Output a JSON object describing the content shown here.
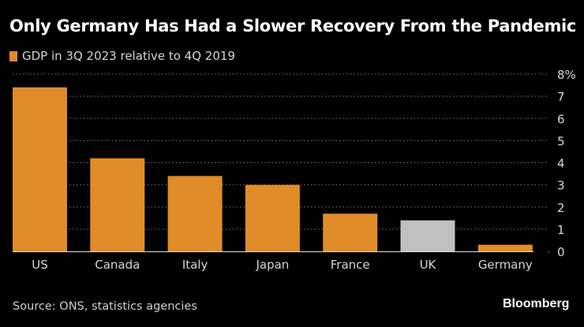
{
  "chart_data": {
    "type": "bar",
    "title": "Only Germany Has Had a Slower Recovery From the Pandemic",
    "legend": [
      {
        "name": "GDP in 3Q 2023 relative to 4Q 2019",
        "color": "#e08c28"
      }
    ],
    "legend_position": "top-left",
    "categories": [
      "US",
      "Canada",
      "Italy",
      "Japan",
      "France",
      "UK",
      "Germany"
    ],
    "values": [
      7.4,
      4.2,
      3.4,
      3.0,
      1.7,
      1.4,
      0.3
    ],
    "bar_colors": [
      "#e08c28",
      "#e08c28",
      "#e08c28",
      "#e08c28",
      "#e08c28",
      "#c0c0c0",
      "#e08c28"
    ],
    "xlabel": "",
    "ylabel": "",
    "ylim": [
      0,
      8
    ],
    "yticks": [
      0,
      1,
      2,
      3,
      4,
      5,
      6,
      7,
      8
    ],
    "ytick_labels": [
      "0",
      "1",
      "2",
      "3",
      "4",
      "5",
      "6",
      "7",
      "8%"
    ],
    "y_axis_side": "right",
    "grid": true,
    "unit": "%"
  },
  "source": "Source: ONS, statistics agencies",
  "brand": "Bloomberg"
}
